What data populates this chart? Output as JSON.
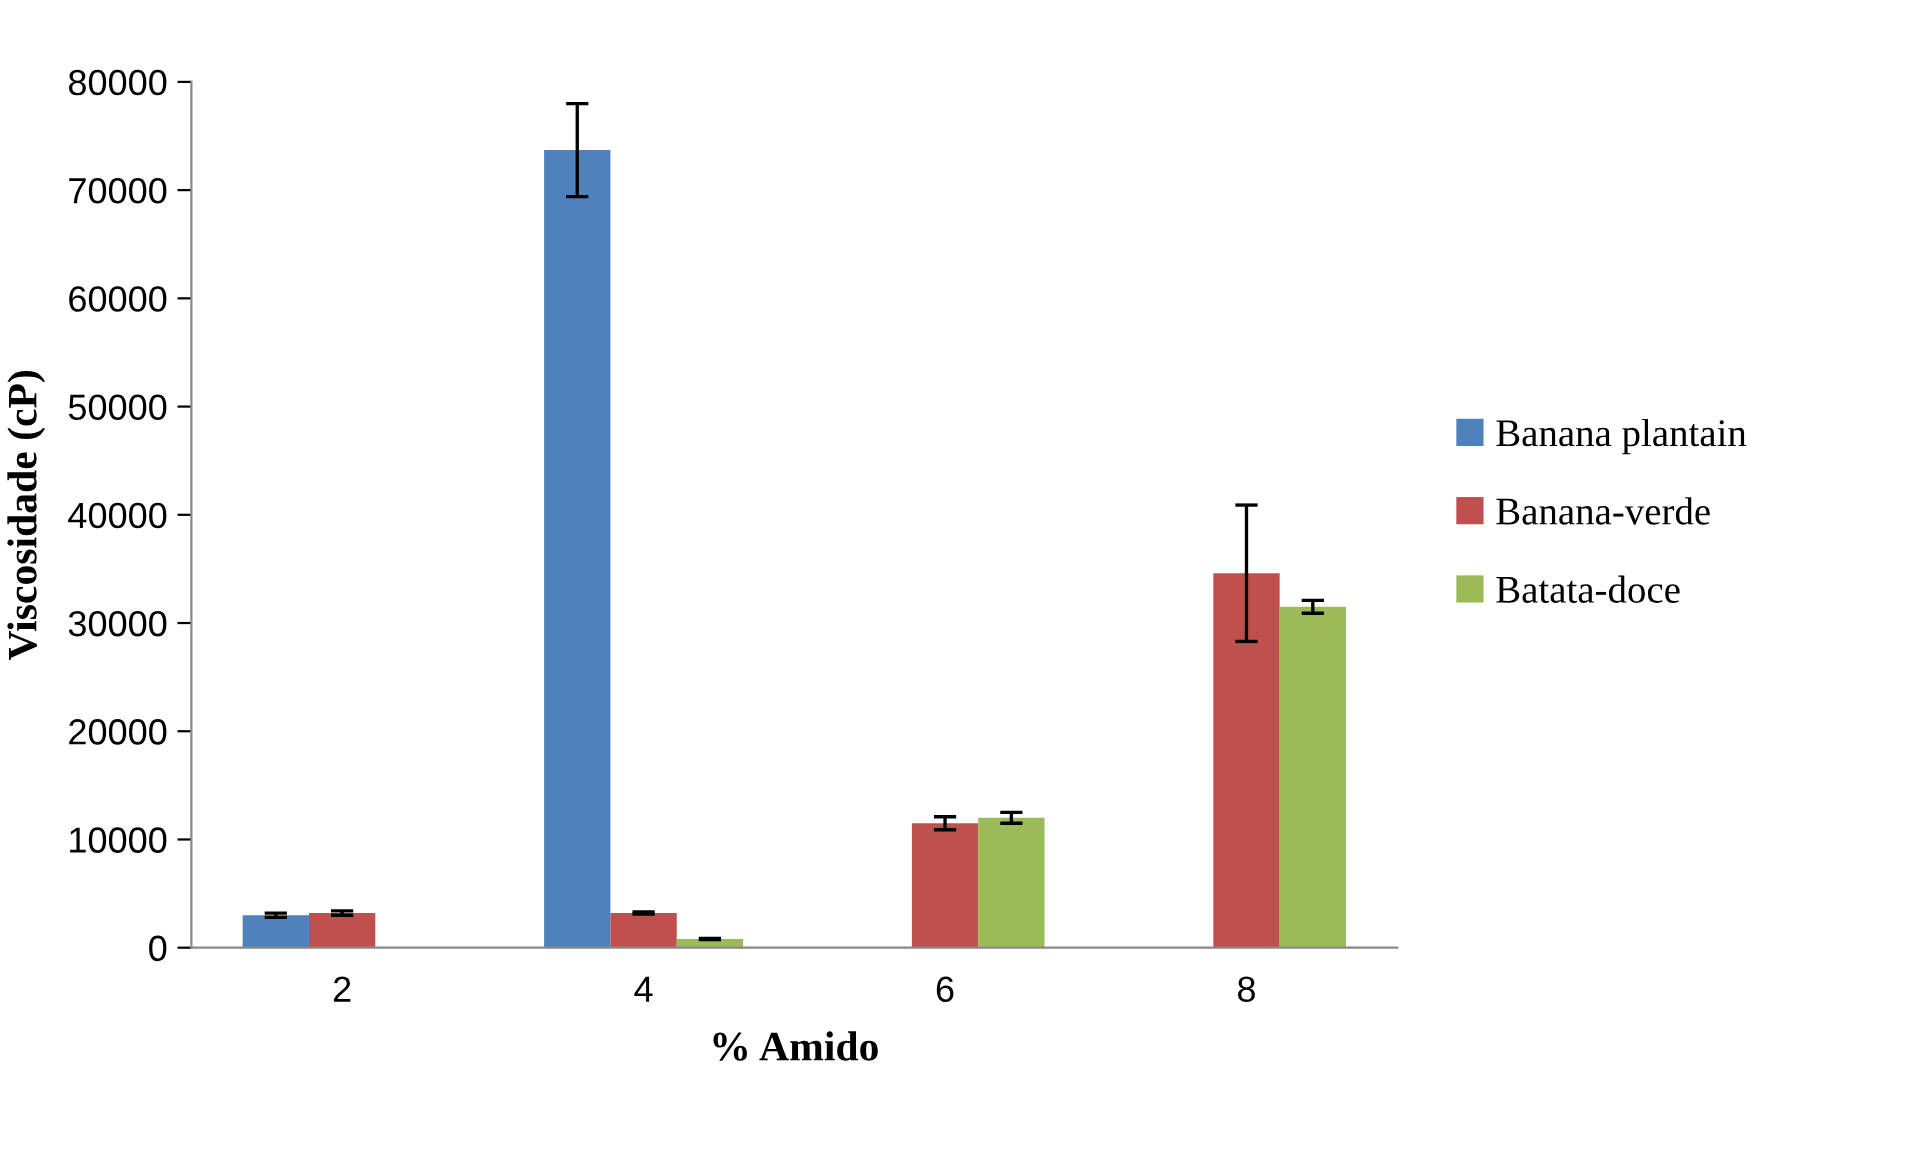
{
  "chart_data": {
    "type": "bar",
    "xlabel": "% Amido",
    "ylabel": "Viscosidade (cP)",
    "categories": [
      "2",
      "4",
      "6",
      "8"
    ],
    "series": [
      {
        "name": "Banana plantain",
        "color": "#4f81bd",
        "values": [
          3000,
          73700,
          null,
          null
        ],
        "errors": [
          200,
          4300,
          null,
          null
        ]
      },
      {
        "name": "Banana-verde",
        "color": "#c0504d",
        "values": [
          3200,
          3200,
          11500,
          34600
        ],
        "errors": [
          200,
          100,
          600,
          6300
        ]
      },
      {
        "name": "Batata-doce",
        "color": "#9bbb59",
        "values": [
          null,
          800,
          12000,
          31500
        ],
        "errors": [
          null,
          50,
          500,
          600
        ]
      }
    ],
    "ylim": [
      0,
      80000
    ],
    "yticks": [
      0,
      10000,
      20000,
      30000,
      40000,
      50000,
      60000,
      70000,
      80000
    ],
    "grid": false,
    "legend": "right"
  }
}
